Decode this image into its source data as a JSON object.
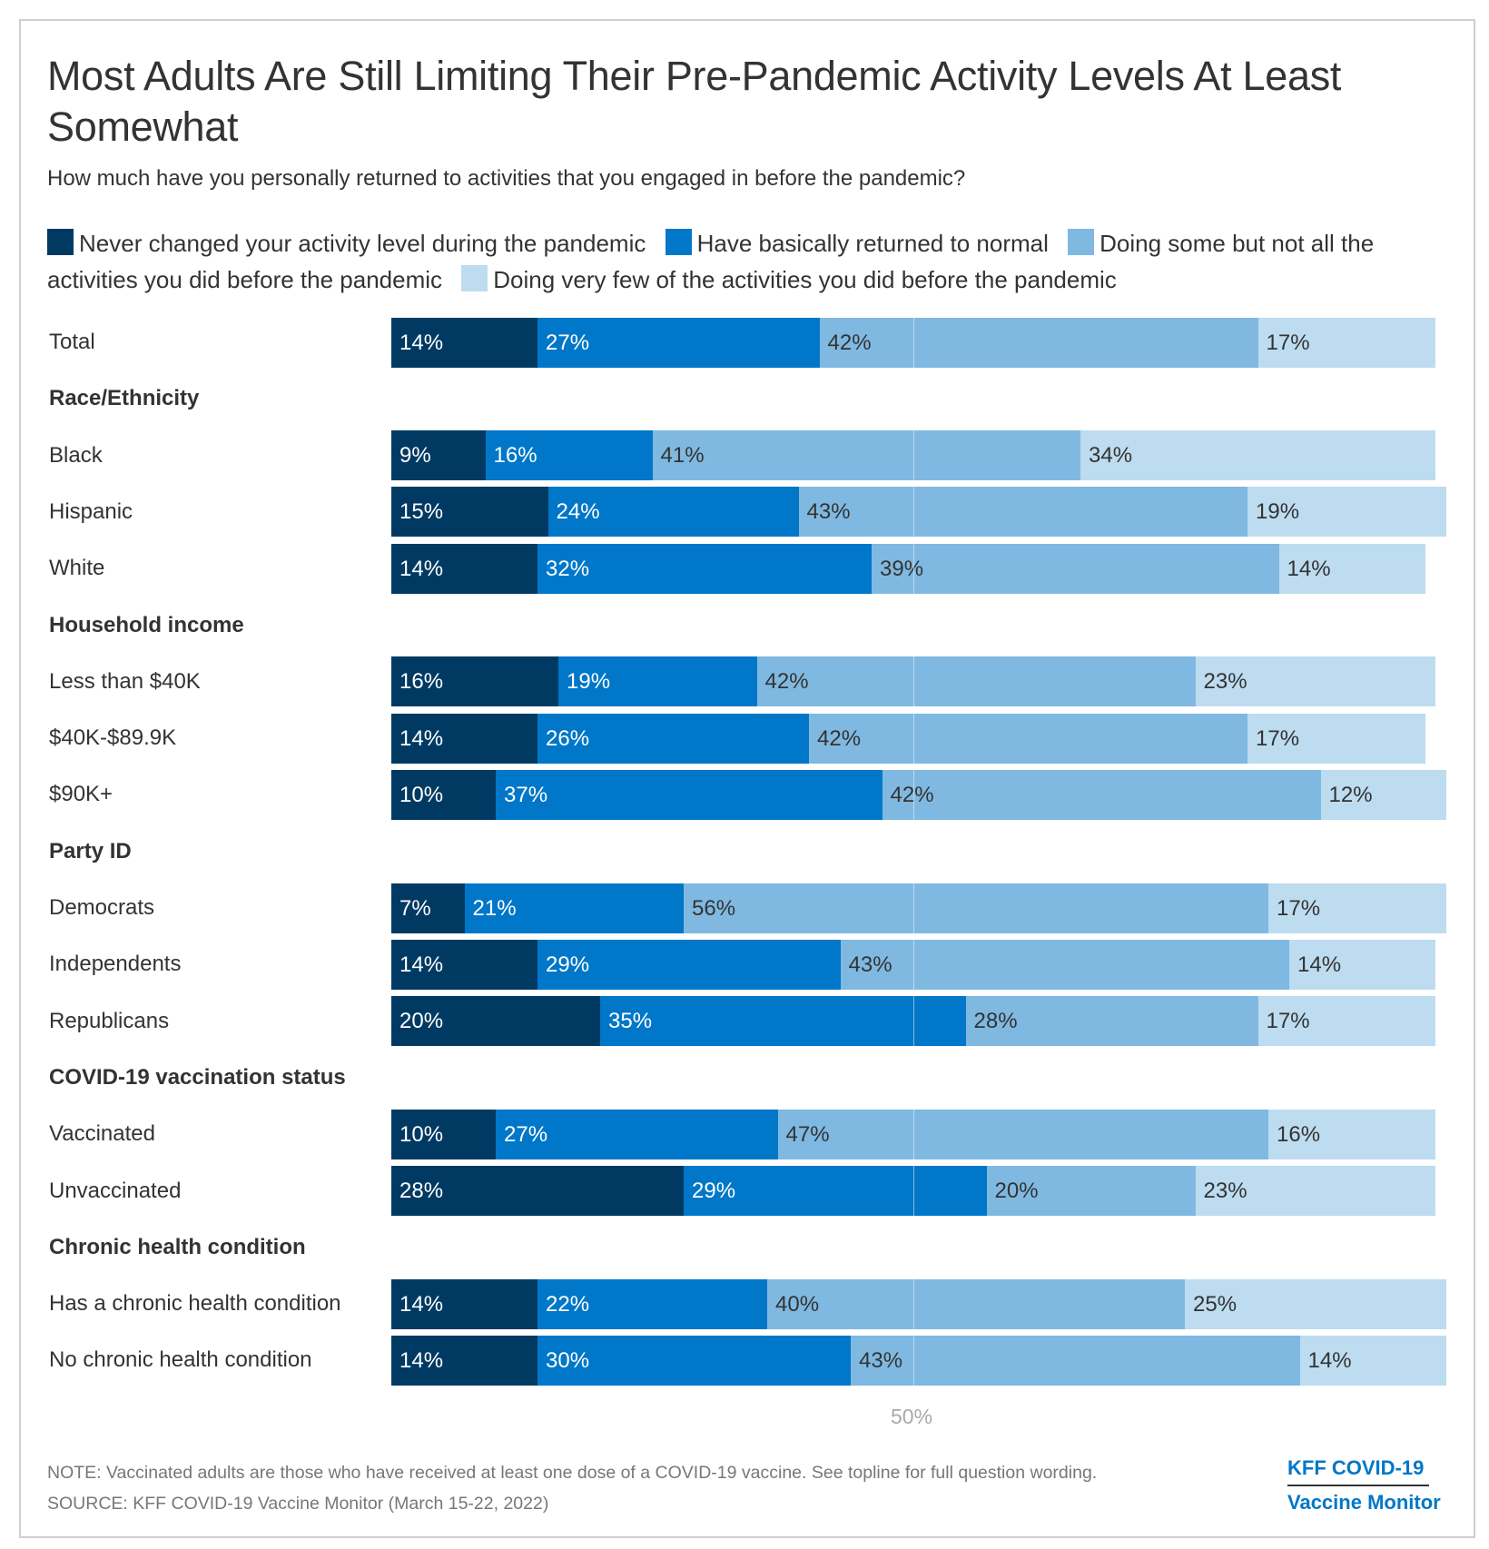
{
  "title": "Most Adults Are Still Limiting Their Pre-Pandemic Activity Levels At Least Somewhat",
  "subtitle": "How much have you personally returned to activities that you engaged in before the pandemic?",
  "footer": {
    "note": "NOTE: Vaccinated adults are those who have received at least one dose of a COVID-19 vaccine. See topline for full question wording.",
    "source": "SOURCE: KFF COVID-19 Vaccine Monitor (March 15-22, 2022)",
    "brand_line1": "KFF COVID-19",
    "brand_line2": "Vaccine Monitor"
  },
  "chart_data": {
    "type": "bar",
    "orientation": "horizontal",
    "stacked": true,
    "title": "Most Adults Are Still Limiting Their Pre-Pandemic Activity Levels At Least Somewhat",
    "subtitle": "How much have you personally returned to activities that you engaged in before the pandemic?",
    "xlabel": "",
    "ylabel": "",
    "xlim": [
      0,
      100
    ],
    "x_ticks": [
      {
        "value": 50,
        "label": "50%"
      }
    ],
    "grid": "vertical line at 50%",
    "legend_position": "top",
    "series": [
      {
        "name": "Never changed your activity level during the pandemic",
        "color": "#003a63",
        "label_color": "#ffffff"
      },
      {
        "name": "Have basically returned to normal",
        "color": "#0077c8",
        "label_color": "#ffffff"
      },
      {
        "name": "Doing some but not all the activities you did before the pandemic",
        "color": "#7fb9e1",
        "label_color": "#333333"
      },
      {
        "name": "Doing very few of the activities you did before the pandemic",
        "color": "#bddcf0",
        "label_color": "#333333"
      }
    ],
    "rows": [
      {
        "type": "row",
        "label": "Total",
        "values": [
          14,
          27,
          42,
          17
        ]
      },
      {
        "type": "group",
        "label": "Race/Ethnicity"
      },
      {
        "type": "row",
        "label": "Black",
        "values": [
          9,
          16,
          41,
          34
        ]
      },
      {
        "type": "row",
        "label": "Hispanic",
        "values": [
          15,
          24,
          43,
          19
        ]
      },
      {
        "type": "row",
        "label": "White",
        "values": [
          14,
          32,
          39,
          14
        ]
      },
      {
        "type": "group",
        "label": "Household income"
      },
      {
        "type": "row",
        "label": "Less than $40K",
        "values": [
          16,
          19,
          42,
          23
        ]
      },
      {
        "type": "row",
        "label": "$40K-$89.9K",
        "values": [
          14,
          26,
          42,
          17
        ]
      },
      {
        "type": "row",
        "label": "$90K+",
        "values": [
          10,
          37,
          42,
          12
        ]
      },
      {
        "type": "group",
        "label": "Party ID"
      },
      {
        "type": "row",
        "label": "Democrats",
        "values": [
          7,
          21,
          56,
          17
        ]
      },
      {
        "type": "row",
        "label": "Independents",
        "values": [
          14,
          29,
          43,
          14
        ]
      },
      {
        "type": "row",
        "label": "Republicans",
        "values": [
          20,
          35,
          28,
          17
        ]
      },
      {
        "type": "group",
        "label": "COVID-19 vaccination status"
      },
      {
        "type": "row",
        "label": "Vaccinated",
        "values": [
          10,
          27,
          47,
          16
        ]
      },
      {
        "type": "row",
        "label": "Unvaccinated",
        "values": [
          28,
          29,
          20,
          23
        ]
      },
      {
        "type": "group",
        "label": "Chronic health condition"
      },
      {
        "type": "row",
        "label": "Has a chronic health condition",
        "values": [
          14,
          22,
          40,
          25
        ]
      },
      {
        "type": "row",
        "label": "No chronic health condition",
        "values": [
          14,
          30,
          43,
          14
        ]
      }
    ]
  }
}
